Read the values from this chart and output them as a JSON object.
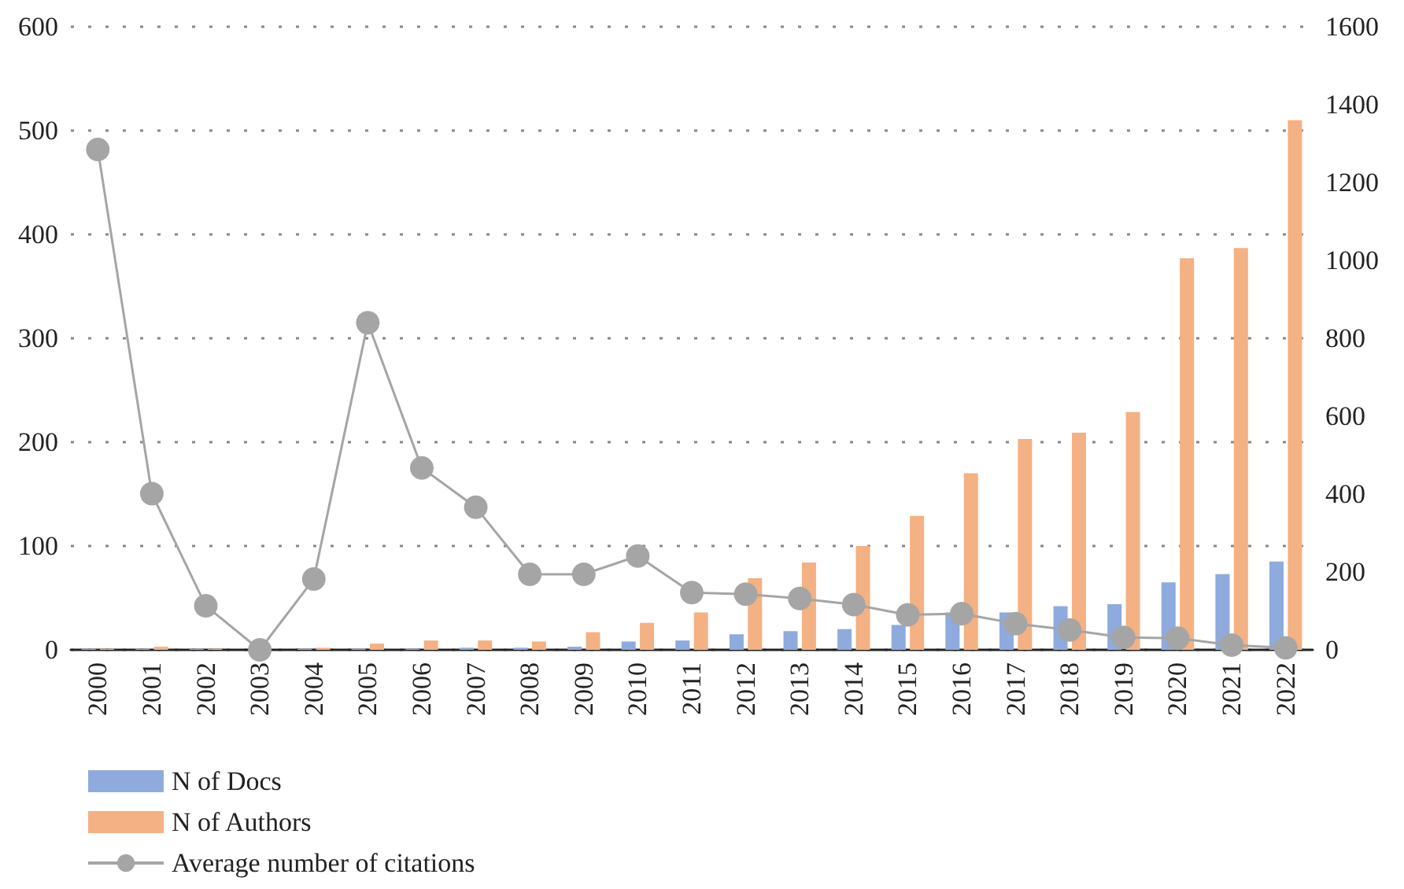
{
  "chart_data": {
    "type": "bar",
    "categories": [
      "2000",
      "2001",
      "2002",
      "2003",
      "2004",
      "2005",
      "2006",
      "2007",
      "2008",
      "2009",
      "2010",
      "2011",
      "2012",
      "2013",
      "2014",
      "2015",
      "2016",
      "2017",
      "2018",
      "2019",
      "2020",
      "2021",
      "2022"
    ],
    "series": [
      {
        "name": "N of Docs",
        "color": "#8faadc",
        "values": [
          1,
          1,
          1,
          0,
          1,
          1,
          1,
          2,
          2,
          3,
          8,
          9,
          15,
          18,
          20,
          24,
          36,
          36,
          42,
          44,
          65,
          73,
          85
        ]
      },
      {
        "name": "N of Authors",
        "color": "#f4b183",
        "values": [
          1,
          3,
          1,
          0,
          2,
          6,
          9,
          9,
          8,
          17,
          26,
          36,
          69,
          84,
          100,
          129,
          170,
          203,
          209,
          229,
          377,
          387,
          510
        ]
      },
      {
        "name": "Average number of citations",
        "type": "line",
        "axis": "y2",
        "color": "#a5a5a5",
        "marker": "circle",
        "values": [
          1285,
          401,
          113,
          0,
          182,
          840,
          467,
          366,
          194,
          194,
          241,
          147,
          143,
          132,
          116,
          90,
          93,
          67,
          51,
          32,
          30,
          12,
          5
        ]
      }
    ],
    "ylim": [
      0,
      600
    ],
    "yticks": [
      0,
      100,
      200,
      300,
      400,
      500,
      600
    ],
    "y2lim": [
      0,
      1600
    ],
    "y2ticks": [
      0,
      200,
      400,
      600,
      800,
      1000,
      1200,
      1400,
      1600
    ],
    "grid": "y",
    "legend": "bottom left"
  }
}
